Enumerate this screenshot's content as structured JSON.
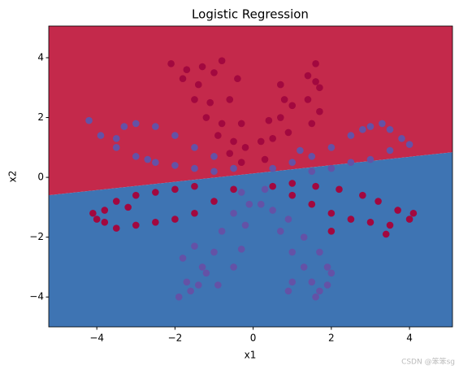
{
  "chart_data": {
    "type": "scatter",
    "title": "Logistic Regression",
    "x_label": "x1",
    "y_label": "x2",
    "xlim": [
      -5.23,
      5.1
    ],
    "ylim": [
      -5.0,
      5.06
    ],
    "xticks": [
      {
        "value": -4,
        "label": "−4"
      },
      {
        "value": -2,
        "label": "−2"
      },
      0,
      2,
      4
    ],
    "yticks": [
      {
        "value": -4,
        "label": "−4"
      },
      {
        "value": -2,
        "label": "−2"
      },
      0,
      2,
      4
    ],
    "decision_boundary": {
      "x": [
        -5.23,
        5.1
      ],
      "y": [
        -0.6,
        0.84
      ],
      "above_color": "#c4294b",
      "below_color": "#3e74b3"
    },
    "series": [
      {
        "color": "#a2083f",
        "x": [
          -0.3,
          -0.5,
          -0.8,
          -1.1,
          -1.4,
          -1.7,
          -2.1,
          -1.8,
          -1.5,
          -1.2,
          -0.9,
          -0.6,
          -0.8,
          -0.4,
          -0.6,
          -0.3,
          -0.2,
          -1.0,
          -1.3,
          0.3,
          0.5,
          0.7,
          0.8,
          0.7,
          1.0,
          1.4,
          1.6,
          1.6,
          1.4,
          1.7,
          0.9,
          0.4,
          0.2,
          1.5,
          1.7,
          -4.0,
          -3.8,
          -3.5,
          -3.0,
          -2.5,
          -2.0,
          -1.5,
          -1.0,
          -0.5,
          -4.1,
          -3.5,
          -3.0,
          -2.5,
          -2.0,
          -1.5,
          -3.2,
          -3.8,
          0.5,
          1.0,
          1.5,
          2.0,
          2.5,
          3.0,
          3.5,
          4.0,
          4.1,
          3.7,
          3.2,
          2.8,
          2.2,
          1.6,
          1.0,
          3.4,
          2.0
        ],
        "y": [
          0.5,
          1.2,
          1.8,
          2.5,
          3.1,
          3.6,
          3.8,
          3.3,
          2.6,
          2.0,
          1.4,
          0.8,
          3.9,
          3.3,
          2.6,
          1.8,
          1.0,
          3.5,
          3.7,
          0.6,
          1.3,
          2.0,
          2.6,
          3.1,
          2.4,
          2.6,
          3.2,
          3.8,
          3.4,
          2.2,
          1.5,
          1.9,
          1.2,
          1.8,
          3.0,
          -1.4,
          -1.5,
          -1.7,
          -1.6,
          -1.5,
          -1.4,
          -1.2,
          -0.8,
          -0.4,
          -1.2,
          -0.8,
          -0.6,
          -0.5,
          -0.4,
          -0.3,
          -1.0,
          -1.1,
          -0.3,
          -0.6,
          -0.9,
          -1.2,
          -1.4,
          -1.5,
          -1.6,
          -1.4,
          -1.2,
          -1.1,
          -0.8,
          -0.6,
          -0.4,
          -0.3,
          -0.2,
          -1.9,
          -1.8
        ]
      },
      {
        "color": "#6452a6",
        "x": [
          -4.2,
          -3.9,
          -3.5,
          -3.5,
          -3.0,
          -2.5,
          -2.0,
          -1.5,
          -1.0,
          -0.5,
          -3.0,
          -2.5,
          -2.0,
          -1.5,
          -1.0,
          -3.3,
          -2.7,
          0.5,
          1.0,
          1.5,
          2.0,
          2.5,
          3.0,
          3.5,
          3.8,
          4.0,
          3.5,
          3.0,
          2.5,
          2.0,
          1.5,
          3.3,
          2.8,
          1.2,
          -0.3,
          -0.5,
          -0.8,
          -1.0,
          -1.3,
          -1.7,
          -1.9,
          -1.6,
          -1.4,
          -1.2,
          -0.9,
          -0.5,
          -0.3,
          -0.2,
          -0.1,
          -1.8,
          -1.5,
          0.3,
          0.5,
          0.7,
          1.0,
          1.3,
          1.5,
          1.7,
          1.9,
          1.9,
          1.7,
          1.3,
          0.9,
          0.2,
          1.0,
          0.9,
          2.0,
          1.6
        ],
        "y": [
          1.9,
          1.4,
          1.3,
          1.0,
          1.8,
          1.7,
          1.4,
          1.0,
          0.7,
          0.3,
          0.7,
          0.5,
          0.4,
          0.3,
          0.2,
          1.7,
          0.6,
          0.3,
          0.5,
          0.7,
          1.0,
          1.4,
          1.7,
          1.6,
          1.3,
          1.1,
          0.9,
          0.6,
          0.5,
          0.3,
          0.2,
          1.8,
          1.6,
          0.9,
          -0.5,
          -1.2,
          -1.8,
          -2.5,
          -3.0,
          -3.5,
          -4.0,
          -3.8,
          -3.6,
          -3.2,
          -3.6,
          -3.0,
          -2.4,
          -1.6,
          -0.9,
          -2.7,
          -2.3,
          -0.4,
          -1.1,
          -1.8,
          -2.5,
          -3.0,
          -3.5,
          -3.8,
          -3.6,
          -3.0,
          -2.5,
          -2.0,
          -1.4,
          -0.9,
          -3.5,
          -3.8,
          -3.2,
          -4.0
        ]
      }
    ],
    "watermark": "CSDN @笨笨sg"
  }
}
